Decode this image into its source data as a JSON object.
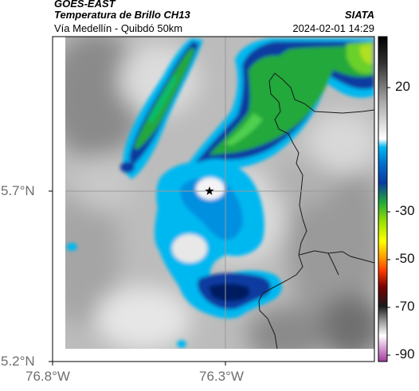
{
  "header": {
    "title": "GOES-EAST",
    "product": "Temperatura de Brillo CH13",
    "organization": "SIATA",
    "route": "Vía Medellín - Quibdó 50km",
    "timestamp": "2024-02-01 14:29"
  },
  "map": {
    "latitude_ticks": [
      "5.7°N",
      "5.2°N"
    ],
    "longitude_ticks": [
      "76.8°W",
      "76.3°W"
    ],
    "marker": "star",
    "marker_color": "#000000",
    "gridline_color": "#9a9a9a",
    "border_color": "#1a1a1a"
  },
  "colorbar": {
    "ticks": [
      "20",
      "-30",
      "-50",
      "-70",
      "-90"
    ],
    "range": [
      -95,
      45
    ],
    "palette": [
      "#a13a9c",
      "#ffffff",
      "#000000",
      "#ff8000",
      "#ffff00",
      "#3cbf3c",
      "#0a2a8f",
      "#00c8ff",
      "#cfcfcf",
      "#000000"
    ]
  }
}
